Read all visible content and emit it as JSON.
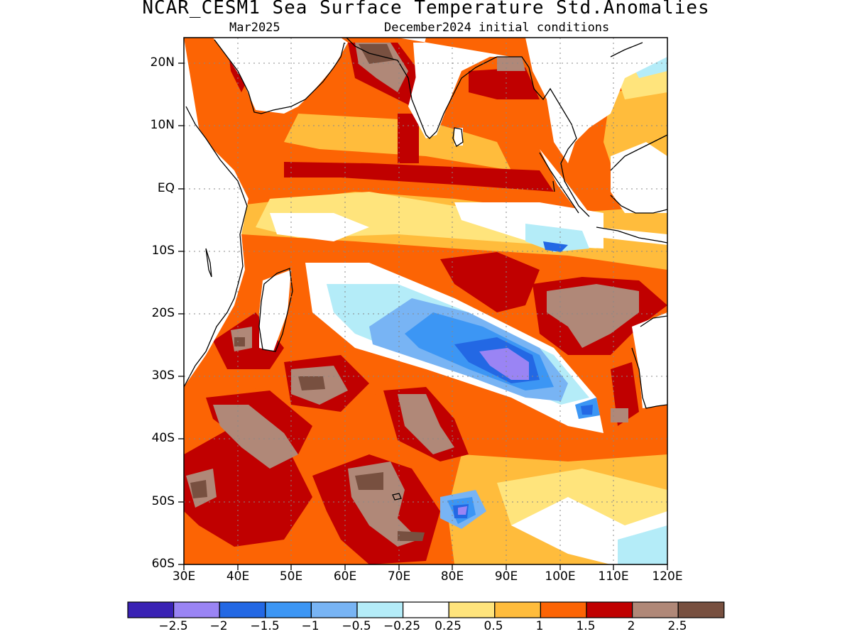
{
  "title": "NCAR_CESM1 Sea Surface Temperature Std.Anomalies",
  "subtitle_left": "Mar2025",
  "subtitle_right": "December2024 initial conditions",
  "map": {
    "lon_range": [
      30,
      120
    ],
    "lat_range": [
      -60,
      24
    ],
    "lat_ticks": [
      {
        "value": 20,
        "label": "20N"
      },
      {
        "value": 10,
        "label": "10N"
      },
      {
        "value": 0,
        "label": "EQ"
      },
      {
        "value": -10,
        "label": "10S"
      },
      {
        "value": -20,
        "label": "20S"
      },
      {
        "value": -30,
        "label": "30S"
      },
      {
        "value": -40,
        "label": "40S"
      },
      {
        "value": -50,
        "label": "50S"
      },
      {
        "value": -60,
        "label": "60S"
      }
    ],
    "lon_ticks": [
      {
        "value": 30,
        "label": "30E"
      },
      {
        "value": 40,
        "label": "40E"
      },
      {
        "value": 50,
        "label": "50E"
      },
      {
        "value": 60,
        "label": "60E"
      },
      {
        "value": 70,
        "label": "70E"
      },
      {
        "value": 80,
        "label": "80E"
      },
      {
        "value": 90,
        "label": "90E"
      },
      {
        "value": 100,
        "label": "100E"
      },
      {
        "value": 110,
        "label": "110E"
      },
      {
        "value": 120,
        "label": "120E"
      }
    ],
    "grid": "dotted"
  },
  "colorbar": {
    "colors": [
      "#3a22b4",
      "#9a84f4",
      "#2368e4",
      "#3c96f4",
      "#78b4f4",
      "#b4ecf8",
      "#ffffff",
      "#ffe47c",
      "#ffbc3c",
      "#fc6404",
      "#c00000",
      "#b08878",
      "#785040"
    ],
    "labels": [
      "−2.5",
      "−2",
      "−1.5",
      "−1",
      "−0.5",
      "−0.25",
      "0.25",
      "0.5",
      "1",
      "1.5",
      "2",
      "2.5"
    ]
  }
}
